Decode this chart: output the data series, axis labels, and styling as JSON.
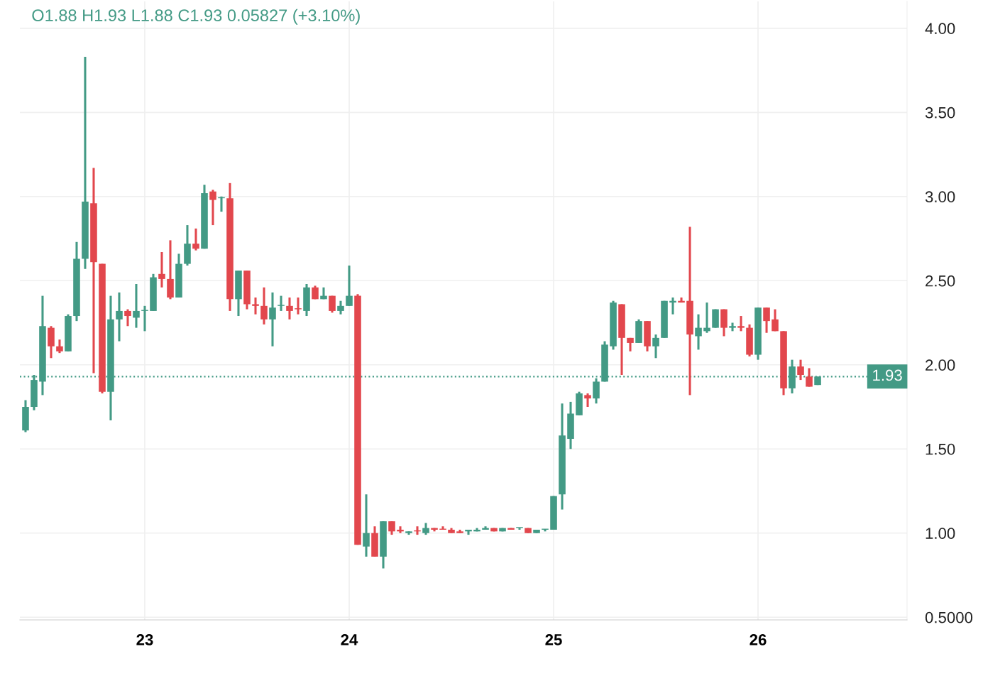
{
  "chart_data": {
    "type": "candlestick",
    "annotations": [
      "O1.88 H1.93 L1.88 C1.93 0.05827 (+3.10%)"
    ],
    "x": [
      22.4167,
      22.4583,
      22.5,
      22.5417,
      22.5833,
      22.625,
      22.6667,
      22.7083,
      22.75,
      22.7917,
      22.8333,
      22.875,
      22.9167,
      22.9583,
      23.0,
      23.0417,
      23.0833,
      23.125,
      23.1667,
      23.2083,
      23.25,
      23.2917,
      23.3333,
      23.375,
      23.4167,
      23.4583,
      23.5,
      23.5417,
      23.5833,
      23.625,
      23.6667,
      23.7083,
      23.75,
      23.7917,
      23.8333,
      23.875,
      23.9167,
      23.9583,
      24.0,
      24.0417,
      24.0833,
      24.125,
      24.1667,
      24.2083,
      24.25,
      24.2917,
      24.3333,
      24.375,
      24.4167,
      24.4583,
      24.5,
      24.5417,
      24.5833,
      24.625,
      24.6667,
      24.7083,
      24.75,
      24.7917,
      24.8333,
      24.875,
      24.9167,
      24.9583,
      25.0,
      25.0417,
      25.0833,
      25.125,
      25.1667,
      25.2083,
      25.25,
      25.2917,
      25.3333,
      25.375,
      25.4167,
      25.4583,
      25.5,
      25.5417,
      25.5833,
      25.625,
      25.6667,
      25.7083,
      25.75,
      25.7917,
      25.8333,
      25.875,
      25.9167,
      25.9583,
      26.0,
      26.0417,
      26.0833,
      26.125,
      26.1667,
      26.2083,
      26.25,
      26.2917
    ],
    "ohlc": [
      [
        1.61,
        1.79,
        1.6,
        1.75
      ],
      [
        1.75,
        1.94,
        1.73,
        1.91
      ],
      [
        1.9,
        2.41,
        1.82,
        2.23
      ],
      [
        2.22,
        2.23,
        2.04,
        2.11
      ],
      [
        2.11,
        2.15,
        2.07,
        2.08
      ],
      [
        2.08,
        2.3,
        2.08,
        2.29
      ],
      [
        2.29,
        2.73,
        2.26,
        2.63
      ],
      [
        2.63,
        3.83,
        2.57,
        2.97
      ],
      [
        2.96,
        3.17,
        1.95,
        2.61
      ],
      [
        2.6,
        2.6,
        1.83,
        1.84
      ],
      [
        1.84,
        2.41,
        1.67,
        2.27
      ],
      [
        2.27,
        2.43,
        2.14,
        2.32
      ],
      [
        2.32,
        2.33,
        2.23,
        2.29
      ],
      [
        2.28,
        2.48,
        2.22,
        2.32
      ],
      [
        2.32,
        2.35,
        2.2,
        2.32
      ],
      [
        2.32,
        2.54,
        2.32,
        2.52
      ],
      [
        2.54,
        2.67,
        2.46,
        2.51
      ],
      [
        2.51,
        2.74,
        2.39,
        2.4
      ],
      [
        2.4,
        2.66,
        2.4,
        2.6
      ],
      [
        2.6,
        2.83,
        2.59,
        2.72
      ],
      [
        2.72,
        2.81,
        2.68,
        2.69
      ],
      [
        2.69,
        3.07,
        2.69,
        3.02
      ],
      [
        3.03,
        3.04,
        2.83,
        2.98
      ],
      [
        2.99,
        3.0,
        2.91,
        2.99
      ],
      [
        2.99,
        3.08,
        2.32,
        2.39
      ],
      [
        2.39,
        2.56,
        2.29,
        2.56
      ],
      [
        2.56,
        2.56,
        2.33,
        2.36
      ],
      [
        2.36,
        2.4,
        2.3,
        2.35
      ],
      [
        2.35,
        2.46,
        2.24,
        2.27
      ],
      [
        2.27,
        2.43,
        2.11,
        2.34
      ],
      [
        2.35,
        2.41,
        2.32,
        2.35
      ],
      [
        2.35,
        2.4,
        2.27,
        2.32
      ],
      [
        2.33,
        2.4,
        2.3,
        2.33
      ],
      [
        2.32,
        2.48,
        2.29,
        2.46
      ],
      [
        2.46,
        2.47,
        2.39,
        2.39
      ],
      [
        2.39,
        2.46,
        2.39,
        2.41
      ],
      [
        2.41,
        2.41,
        2.31,
        2.32
      ],
      [
        2.32,
        2.38,
        2.3,
        2.35
      ],
      [
        2.35,
        2.59,
        2.35,
        2.41
      ],
      [
        2.41,
        2.42,
        0.93,
        0.93
      ],
      [
        0.92,
        1.23,
        0.86,
        1.0
      ],
      [
        1.0,
        1.04,
        0.86,
        0.86
      ],
      [
        0.86,
        1.07,
        0.79,
        1.07
      ],
      [
        1.07,
        1.07,
        0.99,
        1.01
      ],
      [
        1.02,
        1.04,
        1.0,
        1.01
      ],
      [
        1.0,
        1.01,
        0.99,
        1.01
      ],
      [
        1.01,
        1.04,
        0.99,
        1.01
      ],
      [
        1.0,
        1.06,
        0.99,
        1.03
      ],
      [
        1.03,
        1.03,
        1.01,
        1.02
      ],
      [
        1.02,
        1.04,
        1.02,
        1.02
      ],
      [
        1.02,
        1.03,
        1.0,
        1.0
      ],
      [
        1.01,
        1.02,
        1.0,
        1.0
      ],
      [
        1.01,
        1.02,
        0.99,
        1.02
      ],
      [
        1.01,
        1.03,
        1.01,
        1.02
      ],
      [
        1.02,
        1.04,
        1.02,
        1.03
      ],
      [
        1.03,
        1.03,
        1.01,
        1.01
      ],
      [
        1.01,
        1.03,
        1.01,
        1.03
      ],
      [
        1.03,
        1.03,
        1.02,
        1.02
      ],
      [
        1.03,
        1.03,
        1.02,
        1.03
      ],
      [
        1.03,
        1.03,
        1.0,
        1.0
      ],
      [
        1.0,
        1.02,
        1.0,
        1.02
      ],
      [
        1.02,
        1.02,
        1.01,
        1.02
      ],
      [
        1.02,
        1.22,
        1.02,
        1.22
      ],
      [
        1.23,
        1.77,
        1.14,
        1.58
      ],
      [
        1.56,
        1.78,
        1.5,
        1.71
      ],
      [
        1.7,
        1.84,
        1.7,
        1.83
      ],
      [
        1.82,
        1.83,
        1.75,
        1.8
      ],
      [
        1.8,
        1.92,
        1.77,
        1.9
      ],
      [
        1.9,
        2.14,
        1.9,
        2.12
      ],
      [
        2.11,
        2.38,
        2.09,
        2.37
      ],
      [
        2.36,
        2.36,
        1.94,
        2.16
      ],
      [
        2.16,
        2.16,
        2.08,
        2.13
      ],
      [
        2.13,
        2.27,
        2.13,
        2.26
      ],
      [
        2.26,
        2.26,
        2.08,
        2.11
      ],
      [
        2.11,
        2.18,
        2.04,
        2.16
      ],
      [
        2.16,
        2.38,
        2.16,
        2.38
      ],
      [
        2.37,
        2.4,
        2.3,
        2.38
      ],
      [
        2.38,
        2.4,
        2.37,
        2.37
      ],
      [
        2.38,
        2.82,
        1.82,
        2.18
      ],
      [
        2.17,
        2.3,
        2.09,
        2.22
      ],
      [
        2.2,
        2.37,
        2.19,
        2.22
      ],
      [
        2.22,
        2.33,
        2.22,
        2.33
      ],
      [
        2.33,
        2.33,
        2.17,
        2.22
      ],
      [
        2.22,
        2.25,
        2.2,
        2.23
      ],
      [
        2.23,
        2.29,
        2.2,
        2.22
      ],
      [
        2.22,
        2.24,
        2.05,
        2.06
      ],
      [
        2.06,
        2.34,
        2.03,
        2.34
      ],
      [
        2.34,
        2.34,
        2.19,
        2.26
      ],
      [
        2.27,
        2.33,
        2.2,
        2.2
      ],
      [
        2.2,
        2.2,
        1.82,
        1.86
      ],
      [
        1.86,
        2.03,
        1.83,
        1.99
      ],
      [
        1.99,
        2.03,
        1.91,
        1.94
      ],
      [
        1.93,
        1.98,
        1.87,
        1.87
      ],
      [
        1.88,
        1.93,
        1.88,
        1.93
      ]
    ],
    "colors": [
      "#439a85",
      "#439a85",
      "#439a85",
      "#e2474d",
      "#e2474d",
      "#439a85",
      "#439a85",
      "#439a85",
      "#e2474d",
      "#e2474d",
      "#439a85",
      "#439a85",
      "#e2474d",
      "#439a85",
      "#439a85",
      "#439a85",
      "#e2474d",
      "#e2474d",
      "#439a85",
      "#439a85",
      "#e2474d",
      "#439a85",
      "#e2474d",
      "#439a85",
      "#e2474d",
      "#439a85",
      "#e2474d",
      "#e2474d",
      "#e2474d",
      "#439a85",
      "#439a85",
      "#e2474d",
      "#e2474d",
      "#439a85",
      "#e2474d",
      "#439a85",
      "#e2474d",
      "#439a85",
      "#439a85",
      "#e2474d",
      "#439a85",
      "#e2474d",
      "#439a85",
      "#e2474d",
      "#e2474d",
      "#439a85",
      "#e2474d",
      "#439a85",
      "#e2474d",
      "#e2474d",
      "#e2474d",
      "#e2474d",
      "#439a85",
      "#439a85",
      "#439a85",
      "#e2474d",
      "#439a85",
      "#e2474d",
      "#439a85",
      "#e2474d",
      "#439a85",
      "#439a85",
      "#439a85",
      "#439a85",
      "#439a85",
      "#439a85",
      "#e2474d",
      "#439a85",
      "#439a85",
      "#439a85",
      "#e2474d",
      "#e2474d",
      "#439a85",
      "#e2474d",
      "#439a85",
      "#439a85",
      "#439a85",
      "#e2474d",
      "#e2474d",
      "#439a85",
      "#439a85",
      "#439a85",
      "#e2474d",
      "#439a85",
      "#e2474d",
      "#e2474d",
      "#439a85",
      "#e2474d",
      "#e2474d",
      "#e2474d",
      "#439a85",
      "#e2474d",
      "#e2474d",
      "#439a85"
    ],
    "xlim": [
      22.389,
      26.729
    ],
    "xticks": [
      23,
      24,
      25,
      26
    ],
    "ylim": [
      0.484,
      4.16
    ],
    "yticks": [
      {
        "value": 0.5,
        "label": "0.5000"
      },
      {
        "value": 1,
        "label": "1.00"
      },
      {
        "value": 1.5,
        "label": "1.50"
      },
      {
        "value": 2,
        "label": "2.00"
      },
      {
        "value": 2.5,
        "label": "2.50"
      },
      {
        "value": 3,
        "label": "3.00"
      },
      {
        "value": 3.5,
        "label": "3.50"
      },
      {
        "value": 4,
        "label": "4.00"
      }
    ],
    "ref_lines": [
      {
        "axis": "y",
        "value": 1.93,
        "label": "1.93",
        "color": "#439a85",
        "line_style": "dotted"
      }
    ],
    "grid": true,
    "legend": false
  }
}
